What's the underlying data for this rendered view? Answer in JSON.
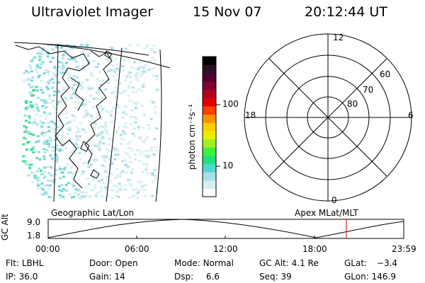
{
  "header": {
    "instrument": "Ultraviolet Imager",
    "date": "15 Nov 07",
    "time": "20:12:44 UT"
  },
  "colorbar": {
    "unit_label": "photon cm⁻²s⁻¹",
    "ticks": [
      {
        "label": "100",
        "value": 100
      },
      {
        "label": "10",
        "value": 10
      }
    ],
    "colors": [
      "#ffffff",
      "#d8eef2",
      "#a8e0e8",
      "#50d8d0",
      "#20e080",
      "#40f040",
      "#a0f020",
      "#e8f000",
      "#ffd000",
      "#ff9000",
      "#ff4000",
      "#e00000",
      "#b00020",
      "#800030",
      "#500030",
      "#2a1020",
      "#000000"
    ]
  },
  "polar_plot": {
    "labels": {
      "top": "12",
      "left": "18",
      "right": "6",
      "bottom": "0",
      "ring_60": "60",
      "ring_70": "70",
      "ring_80": "80"
    }
  },
  "map_panel": {
    "left_label": "Geographic Lat/Lon",
    "right_label": "Apex MLat/MLT"
  },
  "altitude_plot": {
    "ylabel": "GC Alt",
    "ytick_top": "9.0",
    "ytick_bottom": "1.8",
    "xticks": [
      "00:00",
      "06:00",
      "12:00",
      "18:00",
      "23:59"
    ],
    "current_marker_color": "#cc0000"
  },
  "status": {
    "flt_label": "Flt:",
    "flt_value": "LBHL",
    "ip_label": "IP:",
    "ip_value": "36.0",
    "door_label": "Door:",
    "door_value": "Open",
    "gain_label": "Gain:",
    "gain_value": "14",
    "mode_label": "Mode:",
    "mode_value": "Normal",
    "dsp_label": "Dsp:",
    "dsp_value": "6.6",
    "gcalt_label": "GC Alt:",
    "gcalt_value": "4.1 Re",
    "seq_label": "Seq:",
    "seq_value": "39",
    "glat_label": "GLat:",
    "glat_value": "−3.4",
    "glon_label": "GLon:",
    "glon_value": "146.9"
  }
}
